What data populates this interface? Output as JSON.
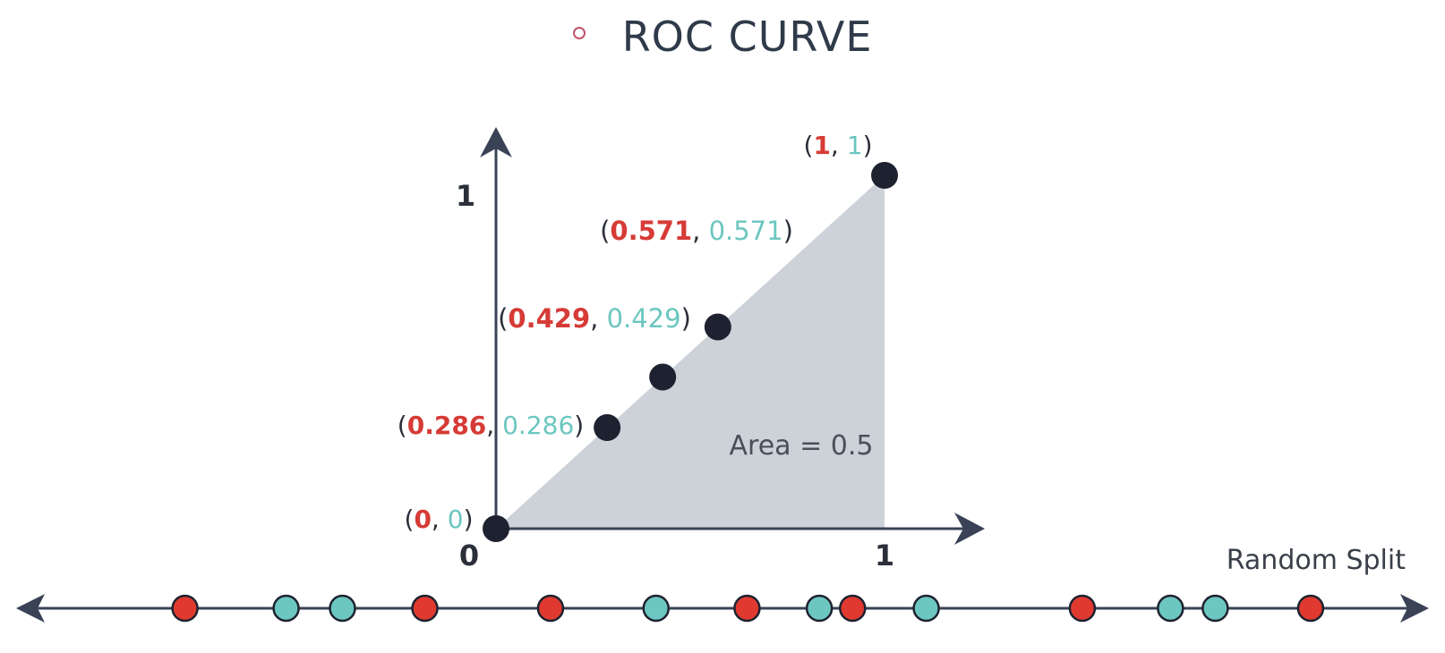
{
  "title": "ROC CURVE",
  "chart_data": {
    "type": "line",
    "points": [
      {
        "x": 0,
        "y": 0,
        "x_label": "0",
        "y_label": "0"
      },
      {
        "x": 0.286,
        "y": 0.286,
        "x_label": "0.286",
        "y_label": "0.286"
      },
      {
        "x": 0.429,
        "y": 0.429,
        "x_label": "0.429",
        "y_label": "0.429"
      },
      {
        "x": 0.571,
        "y": 0.571,
        "x_label": "0.571",
        "y_label": "0.571"
      },
      {
        "x": 1,
        "y": 1,
        "x_label": "1",
        "y_label": "1"
      }
    ],
    "xlim": [
      0,
      1
    ],
    "ylim": [
      0,
      1
    ],
    "x_ticks": [
      "0",
      "1"
    ],
    "y_ticks": [
      "1"
    ],
    "area_label": "Area = 0.5",
    "area_fill": "#cdd1d8"
  },
  "split_line": {
    "label": "Random Split",
    "dots": [
      "red",
      "teal",
      "teal",
      "red",
      "red",
      "teal",
      "red",
      "teal",
      "red",
      "teal",
      "red",
      "teal",
      "teal",
      "red"
    ],
    "positions": [
      0.128,
      0.198,
      0.237,
      0.294,
      0.381,
      0.454,
      0.517,
      0.567,
      0.59,
      0.641,
      0.749,
      0.81,
      0.841,
      0.907
    ]
  },
  "colors": {
    "red": "#e03a30",
    "teal": "#6cc7c0",
    "axis": "#3a4256",
    "point": "#1e2230",
    "label_dark": "#2b2f3a",
    "label_red": "#d63b36",
    "label_teal": "#6cc7c0"
  }
}
